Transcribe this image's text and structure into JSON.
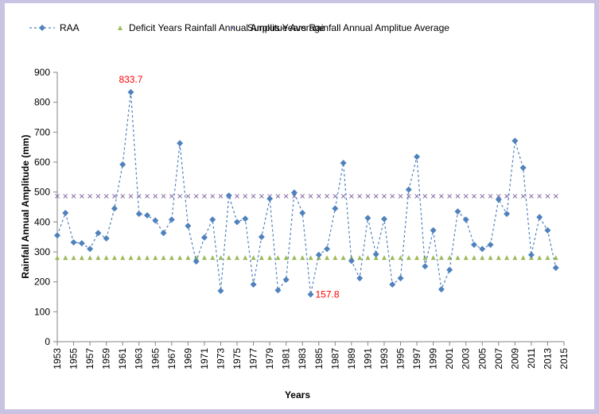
{
  "chart_data": {
    "type": "line",
    "title": "",
    "xlabel": "Years",
    "ylabel": "Rainfall Annual Amplitude (mm)",
    "ylim": [
      0,
      900
    ],
    "xlim": [
      1953,
      2015
    ],
    "yticks": [
      0,
      100,
      200,
      300,
      400,
      500,
      600,
      700,
      800,
      900
    ],
    "xticks": [
      1953,
      1955,
      1957,
      1959,
      1961,
      1963,
      1965,
      1967,
      1969,
      1971,
      1973,
      1975,
      1977,
      1979,
      1981,
      1983,
      1985,
      1987,
      1989,
      1991,
      1993,
      1995,
      1997,
      1999,
      2001,
      2003,
      2005,
      2007,
      2009,
      2011,
      2013,
      2015
    ],
    "grid": false,
    "legend_position": "top",
    "x": [
      1953,
      1954,
      1955,
      1956,
      1957,
      1958,
      1959,
      1960,
      1961,
      1962,
      1963,
      1964,
      1965,
      1966,
      1967,
      1968,
      1969,
      1970,
      1971,
      1972,
      1973,
      1974,
      1975,
      1976,
      1977,
      1978,
      1979,
      1980,
      1981,
      1982,
      1983,
      1984,
      1985,
      1986,
      1987,
      1988,
      1989,
      1990,
      1991,
      1992,
      1993,
      1994,
      1995,
      1996,
      1997,
      1998,
      1999,
      2000,
      2001,
      2002,
      2003,
      2004,
      2005,
      2006,
      2007,
      2008,
      2009,
      2010,
      2011,
      2012,
      2013,
      2014
    ],
    "series": [
      {
        "name": "RAA",
        "style": "dashed-line-diamond",
        "color": "#4f81bd",
        "values": [
          355,
          430,
          332,
          329,
          310,
          363,
          345,
          445,
          592,
          833.7,
          427,
          422,
          405,
          363,
          408,
          663,
          387,
          268,
          348,
          408,
          170,
          488,
          400,
          411,
          191,
          350,
          478,
          172,
          207,
          498,
          430,
          157.8,
          290,
          310,
          445,
          597,
          270,
          212,
          413,
          292,
          410,
          191,
          212,
          508,
          618,
          252,
          372,
          175,
          240,
          435,
          408,
          324,
          310,
          324,
          475,
          427,
          671,
          581,
          290,
          416,
          372,
          247
        ]
      },
      {
        "name": "Deficit Years Rainfall Annual Amplitue Average",
        "style": "triangle-markers",
        "color": "#9bbb59",
        "constant": 281
      },
      {
        "name": "Surplus Years Rainfall Annual Amplitue Average",
        "style": "x-markers",
        "color": "#8064a2",
        "constant": 486
      }
    ],
    "annotations": [
      {
        "year": 1962,
        "value": 833.7,
        "text": "833.7",
        "color": "#ff0000"
      },
      {
        "year": 1984,
        "value": 157.8,
        "text": "157.8",
        "color": "#ff0000"
      }
    ]
  }
}
